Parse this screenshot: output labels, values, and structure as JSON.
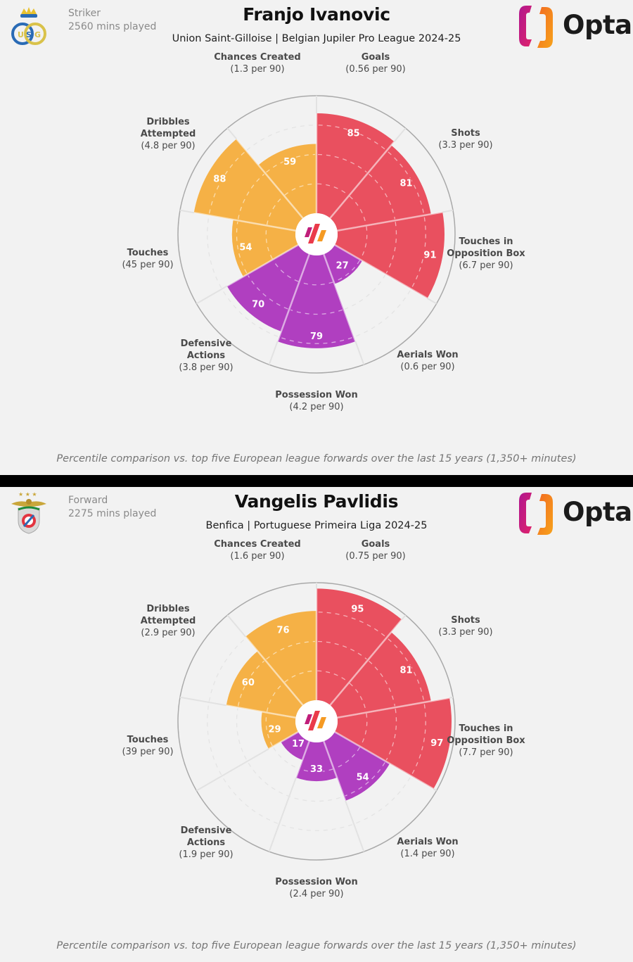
{
  "colors": {
    "background": "#f2f2f2",
    "attacking": "#e9505f",
    "possession": "#f5b146",
    "defending": "#b03fc0",
    "ring": "#a9a9a9",
    "spoke": "#e2e2e2",
    "opta_dark": "#1b1b1b"
  },
  "brand": {
    "name": "Opta"
  },
  "footnote": "Percentile comparison vs. top five European league forwards over the last 15 years (1,350+ minutes)",
  "panels": [
    {
      "player": "Franjo Ivanovic",
      "position": "Striker",
      "minutes": "2560 mins played",
      "subtitle": "Union Saint-Gilloise | Belgian Jupiler Pro League 2024-25",
      "club_crest": "usg-crest-icon"
    },
    {
      "player": "Vangelis Pavlidis",
      "position": "Forward",
      "minutes": "2275 mins played",
      "subtitle": "Benfica | Portuguese Primeira Liga 2024-25",
      "club_crest": "benfica-crest-icon"
    }
  ],
  "chart_data": [
    {
      "type": "polar-bar",
      "title": "Franjo Ivanovic",
      "scale": [
        0,
        100
      ],
      "gridlines": [
        25,
        50,
        75
      ],
      "categories": [
        "Goals",
        "Shots",
        "Touches in Opposition Box",
        "Aerials Won",
        "Possession Won",
        "Defensive Actions",
        "Touches",
        "Dribbles Attempted",
        "Chances Created"
      ],
      "label_lines": [
        [
          "Goals"
        ],
        [
          "Shots"
        ],
        [
          "Touches in",
          "Opposition Box"
        ],
        [
          "Aerials Won"
        ],
        [
          "Possession Won"
        ],
        [
          "Defensive",
          "Actions"
        ],
        [
          "Touches"
        ],
        [
          "Dribbles",
          "Attempted"
        ],
        [
          "Chances Created"
        ]
      ],
      "per90": [
        "(0.56 per 90)",
        "(3.3 per 90)",
        "(6.7 per 90)",
        "(0.6 per 90)",
        "(4.2 per 90)",
        "(3.8 per 90)",
        "(45 per 90)",
        "(4.8 per 90)",
        "(1.3 per 90)"
      ],
      "groups": [
        "attacking",
        "attacking",
        "attacking",
        "defending",
        "defending",
        "defending",
        "possession",
        "possession",
        "possession"
      ],
      "values": [
        85,
        81,
        91,
        27,
        79,
        70,
        54,
        88,
        59
      ]
    },
    {
      "type": "polar-bar",
      "title": "Vangelis Pavlidis",
      "scale": [
        0,
        100
      ],
      "gridlines": [
        25,
        50,
        75
      ],
      "categories": [
        "Goals",
        "Shots",
        "Touches in Opposition Box",
        "Aerials Won",
        "Possession Won",
        "Defensive Actions",
        "Touches",
        "Dribbles Attempted",
        "Chances Created"
      ],
      "label_lines": [
        [
          "Goals"
        ],
        [
          "Shots"
        ],
        [
          "Touches in",
          "Opposition Box"
        ],
        [
          "Aerials Won"
        ],
        [
          "Possession Won"
        ],
        [
          "Defensive",
          "Actions"
        ],
        [
          "Touches"
        ],
        [
          "Dribbles",
          "Attempted"
        ],
        [
          "Chances Created"
        ]
      ],
      "per90": [
        "(0.75 per 90)",
        "(3.3 per 90)",
        "(7.7 per 90)",
        "(1.4 per 90)",
        "(2.4 per 90)",
        "(1.9 per 90)",
        "(39 per 90)",
        "(2.9 per 90)",
        "(1.6 per 90)"
      ],
      "groups": [
        "attacking",
        "attacking",
        "attacking",
        "defending",
        "defending",
        "defending",
        "possession",
        "possession",
        "possession"
      ],
      "values": [
        95,
        81,
        97,
        54,
        33,
        17,
        29,
        60,
        76
      ]
    }
  ]
}
